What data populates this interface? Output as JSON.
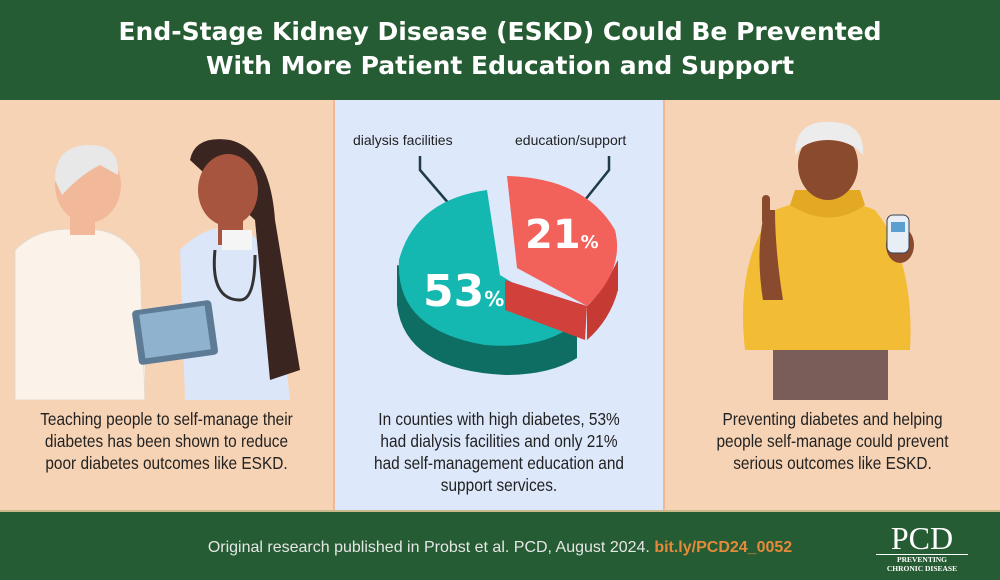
{
  "header": {
    "title_line1": "End-Stage Kidney Disease (ESKD) Could Be Prevented",
    "title_line2": "With More Patient Education and Support"
  },
  "panels": [
    {
      "caption": "Teaching people to self-manage their diabetes has been shown to reduce poor diabetes outcomes like ESKD."
    },
    {
      "caption": "In counties with high diabetes, 53% had dialysis facilities and only 21% had self-management education and support services."
    },
    {
      "caption": "Preventing diabetes and helping people self-manage could prevent serious outcomes like ESKD."
    }
  ],
  "pie": {
    "label_dialysis": "dialysis facilities",
    "label_education": "education/support",
    "value_dialysis": "53",
    "value_education": "21",
    "pct": "%",
    "color_dialysis": "#14b8b0",
    "color_education": "#f2615a"
  },
  "footer": {
    "text": "Original research published in Probst et al. PCD, August 2024.",
    "link": "bit.ly/PCD24_0052"
  },
  "logo": {
    "abbr": "PCD",
    "line1": "PREVENTING",
    "line2": "CHRONIC DISEASE"
  }
}
